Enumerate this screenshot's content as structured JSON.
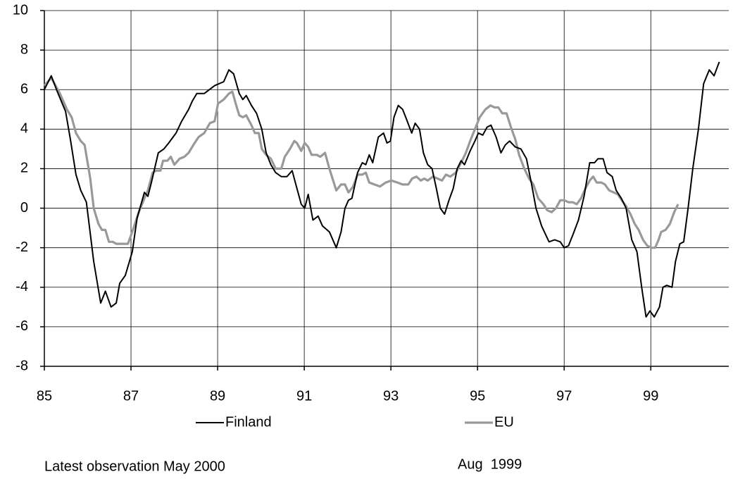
{
  "chart_data": {
    "type": "line",
    "xlim": [
      1985,
      2000.8
    ],
    "xticks": [
      {
        "value": 1985,
        "label": "85"
      },
      {
        "value": 1987,
        "label": "87"
      },
      {
        "value": 1989,
        "label": "89"
      },
      {
        "value": 1991,
        "label": "91"
      },
      {
        "value": 1993,
        "label": "93"
      },
      {
        "value": 1995,
        "label": "95"
      },
      {
        "value": 1997,
        "label": "97"
      },
      {
        "value": 1999,
        "label": "99"
      }
    ],
    "ylim": [
      -8,
      10
    ],
    "yticks": [
      -8,
      -6,
      -4,
      -2,
      0,
      2,
      4,
      6,
      8,
      10
    ],
    "grid": true,
    "legend": "bottom",
    "annotations": [
      "Latest observation May 2000",
      "Aug  1999"
    ],
    "series": [
      {
        "name": "Finland",
        "color": "#000000",
        "x": [
          1985.0,
          1985.16,
          1985.28,
          1985.49,
          1985.6,
          1985.73,
          1985.84,
          1985.97,
          1986.14,
          1986.3,
          1986.41,
          1986.54,
          1986.66,
          1986.74,
          1986.87,
          1987.03,
          1987.14,
          1987.31,
          1987.39,
          1987.47,
          1987.63,
          1987.76,
          1987.87,
          1988.04,
          1988.17,
          1988.33,
          1988.41,
          1988.52,
          1988.69,
          1988.93,
          1989.14,
          1989.26,
          1989.37,
          1989.5,
          1989.58,
          1989.66,
          1989.78,
          1989.9,
          1990.02,
          1990.12,
          1990.23,
          1990.34,
          1990.47,
          1990.6,
          1990.72,
          1990.83,
          1990.93,
          1991.01,
          1991.09,
          1991.2,
          1991.32,
          1991.42,
          1991.58,
          1991.74,
          1991.85,
          1991.94,
          1992.02,
          1992.1,
          1992.23,
          1992.34,
          1992.42,
          1992.5,
          1992.58,
          1992.71,
          1992.83,
          1992.91,
          1992.99,
          1993.07,
          1993.17,
          1993.27,
          1993.36,
          1993.48,
          1993.56,
          1993.66,
          1993.75,
          1993.85,
          1993.95,
          1994.05,
          1994.14,
          1994.24,
          1994.34,
          1994.44,
          1994.53,
          1994.62,
          1994.7,
          1994.83,
          1994.94,
          1995.02,
          1995.12,
          1995.22,
          1995.31,
          1995.43,
          1995.54,
          1995.64,
          1995.74,
          1995.87,
          1996.0,
          1996.13,
          1996.24,
          1996.35,
          1996.48,
          1996.65,
          1996.78,
          1996.91,
          1997.0,
          1997.1,
          1997.21,
          1997.33,
          1997.46,
          1997.59,
          1997.7,
          1997.78,
          1997.9,
          1997.99,
          1998.11,
          1998.2,
          1998.32,
          1998.43,
          1998.56,
          1998.68,
          1998.79,
          1998.89,
          1998.98,
          1999.08,
          1999.2,
          1999.28,
          1999.37,
          1999.49,
          1999.57,
          1999.67,
          1999.76,
          1999.86,
          1999.97,
          2000.1,
          2000.22,
          2000.35,
          2000.46,
          2000.58
        ],
        "values": [
          6.0,
          6.7,
          6.0,
          4.9,
          3.5,
          1.7,
          0.9,
          0.3,
          -2.7,
          -4.8,
          -4.2,
          -5.0,
          -4.8,
          -3.8,
          -3.4,
          -2.2,
          -0.5,
          0.8,
          0.6,
          1.3,
          2.8,
          3.0,
          3.3,
          3.8,
          4.4,
          5.0,
          5.4,
          5.8,
          5.8,
          6.2,
          6.4,
          7.0,
          6.8,
          5.8,
          5.5,
          5.7,
          5.2,
          4.8,
          4.0,
          2.8,
          2.2,
          1.8,
          1.6,
          1.6,
          1.9,
          1.0,
          0.2,
          0.0,
          0.7,
          -0.6,
          -0.4,
          -0.9,
          -1.2,
          -2.0,
          -1.2,
          0.0,
          0.4,
          0.5,
          1.8,
          2.3,
          2.2,
          2.7,
          2.3,
          3.6,
          3.8,
          3.3,
          3.4,
          4.6,
          5.2,
          5.0,
          4.5,
          3.8,
          4.3,
          4.0,
          2.8,
          2.2,
          2.0,
          1.0,
          0.0,
          -0.3,
          0.4,
          1.0,
          2.0,
          2.4,
          2.2,
          2.9,
          3.4,
          3.8,
          3.7,
          4.1,
          4.2,
          3.6,
          2.8,
          3.2,
          3.4,
          3.1,
          3.0,
          2.5,
          1.3,
          0.0,
          -0.9,
          -1.7,
          -1.6,
          -1.7,
          -2.0,
          -1.9,
          -1.3,
          -0.6,
          0.6,
          2.3,
          2.3,
          2.5,
          2.5,
          1.8,
          1.6,
          0.9,
          0.5,
          0.0,
          -1.6,
          -2.2,
          -4.0,
          -5.5,
          -5.2,
          -5.5,
          -5.0,
          -4.0,
          -3.9,
          -4.0,
          -2.7,
          -1.8,
          -1.7,
          0.0,
          2.0,
          4.0,
          6.3,
          7.0,
          6.7,
          7.4
        ]
      },
      {
        "name": "EU",
        "color": "#999999",
        "x": [
          1985.0,
          1985.16,
          1985.36,
          1985.52,
          1985.63,
          1985.73,
          1985.84,
          1985.93,
          1986.06,
          1986.14,
          1986.25,
          1986.33,
          1986.41,
          1986.49,
          1986.58,
          1986.66,
          1986.82,
          1986.93,
          1987.06,
          1987.18,
          1987.31,
          1987.39,
          1987.5,
          1987.58,
          1987.68,
          1987.74,
          1987.84,
          1987.92,
          1988.0,
          1988.12,
          1988.23,
          1988.33,
          1988.44,
          1988.56,
          1988.69,
          1988.82,
          1988.93,
          1989.01,
          1989.14,
          1989.26,
          1989.34,
          1989.43,
          1989.5,
          1989.58,
          1989.66,
          1989.78,
          1989.86,
          1989.95,
          1990.02,
          1990.12,
          1990.23,
          1990.34,
          1990.47,
          1990.55,
          1990.67,
          1990.77,
          1990.83,
          1990.93,
          1991.01,
          1991.09,
          1991.17,
          1991.29,
          1991.37,
          1991.48,
          1991.58,
          1991.74,
          1991.85,
          1991.94,
          1992.02,
          1992.13,
          1992.23,
          1992.34,
          1992.42,
          1992.5,
          1992.62,
          1992.75,
          1992.88,
          1993.01,
          1993.15,
          1993.27,
          1993.4,
          1993.49,
          1993.59,
          1993.69,
          1993.77,
          1993.85,
          1993.97,
          1994.08,
          1994.18,
          1994.27,
          1994.37,
          1994.5,
          1994.62,
          1994.73,
          1994.83,
          1994.94,
          1995.05,
          1995.18,
          1995.3,
          1995.39,
          1995.48,
          1995.57,
          1995.67,
          1995.77,
          1995.87,
          1995.96,
          1996.08,
          1996.19,
          1996.29,
          1996.4,
          1996.52,
          1996.61,
          1996.71,
          1996.81,
          1996.91,
          1997.0,
          1997.1,
          1997.2,
          1997.29,
          1997.39,
          1997.49,
          1997.59,
          1997.67,
          1997.75,
          1997.86,
          1997.94,
          1998.04,
          1998.14,
          1998.24,
          1998.33,
          1998.43,
          1998.53,
          1998.63,
          1998.72,
          1998.82,
          1998.92,
          1999.02,
          1999.1,
          1999.18,
          1999.24,
          1999.34,
          1999.44,
          1999.54,
          1999.63
        ],
        "values": [
          6.2,
          6.6,
          5.8,
          5.0,
          4.6,
          3.8,
          3.4,
          3.2,
          1.5,
          0.0,
          -0.8,
          -1.1,
          -1.1,
          -1.7,
          -1.7,
          -1.8,
          -1.8,
          -1.8,
          -1.0,
          -0.2,
          0.5,
          0.9,
          1.8,
          1.9,
          1.9,
          2.4,
          2.4,
          2.6,
          2.2,
          2.5,
          2.6,
          2.8,
          3.2,
          3.6,
          3.8,
          4.3,
          4.4,
          5.3,
          5.5,
          5.8,
          5.9,
          5.2,
          4.7,
          4.6,
          4.7,
          4.2,
          3.8,
          3.8,
          3.0,
          2.7,
          2.5,
          2.0,
          2.0,
          2.6,
          3.0,
          3.4,
          3.3,
          2.9,
          3.3,
          3.1,
          2.7,
          2.7,
          2.6,
          2.8,
          2.0,
          0.9,
          1.2,
          1.2,
          0.8,
          1.1,
          1.7,
          1.7,
          1.8,
          1.3,
          1.2,
          1.1,
          1.3,
          1.4,
          1.3,
          1.2,
          1.2,
          1.5,
          1.6,
          1.4,
          1.5,
          1.4,
          1.6,
          1.5,
          1.4,
          1.7,
          1.6,
          1.8,
          2.3,
          2.8,
          3.4,
          4.0,
          4.6,
          5.0,
          5.2,
          5.1,
          5.1,
          4.8,
          4.8,
          4.1,
          3.5,
          2.7,
          2.0,
          1.5,
          1.2,
          0.5,
          0.2,
          -0.1,
          -0.2,
          0.0,
          0.4,
          0.4,
          0.3,
          0.3,
          0.2,
          0.5,
          1.0,
          1.4,
          1.6,
          1.3,
          1.3,
          1.2,
          0.9,
          0.8,
          0.7,
          0.4,
          0.1,
          -0.3,
          -0.8,
          -1.1,
          -1.6,
          -1.9,
          -2.0,
          -2.0,
          -1.6,
          -1.2,
          -1.1,
          -0.8,
          -0.2,
          0.2
        ]
      }
    ]
  }
}
